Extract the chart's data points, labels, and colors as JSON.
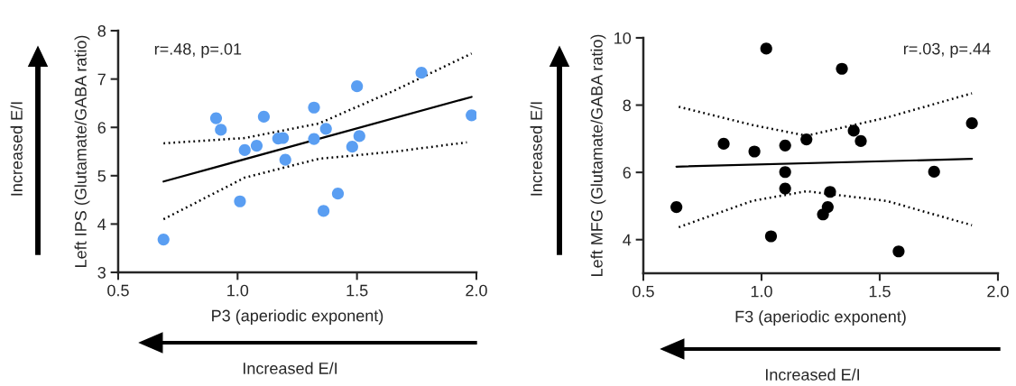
{
  "chart_data": [
    {
      "type": "scatter",
      "xlabel": "P3 (aperiodic exponent)",
      "ylabel": "Left IPS (Glutamate/GABA ratio)",
      "annotations": [
        "r=.48, p=.01",
        "Increased E/I",
        "Increased E/I"
      ],
      "xlim": [
        0.5,
        2.0
      ],
      "xticks": [
        {
          "value": 0.5,
          "label": "0.5"
        },
        {
          "value": 1.0,
          "label": "1.0"
        },
        {
          "value": 1.5,
          "label": "1.5"
        },
        {
          "value": 2.0,
          "label": "2.0"
        }
      ],
      "ylim": [
        3,
        8
      ],
      "yticks": [
        3,
        4,
        5,
        6,
        7,
        8
      ],
      "grid": false,
      "legend": false,
      "series": [
        {
          "marker": "circle",
          "color": "#5a9ef2",
          "x": [
            0.69,
            0.91,
            0.93,
            1.01,
            1.03,
            1.08,
            1.11,
            1.17,
            1.19,
            1.2,
            1.32,
            1.32,
            1.36,
            1.37,
            1.42,
            1.48,
            1.5,
            1.51,
            1.77,
            1.98
          ],
          "values": [
            3.68,
            6.19,
            5.95,
            4.47,
            5.53,
            5.62,
            6.22,
            5.77,
            5.78,
            5.33,
            6.41,
            5.76,
            4.27,
            5.97,
            4.63,
            5.6,
            6.85,
            5.82,
            7.13,
            6.25
          ]
        },
        {
          "type": "line",
          "line_style": "solid",
          "color": "#000000",
          "x": [
            0.69,
            1.98
          ],
          "values": [
            4.88,
            6.63
          ]
        },
        {
          "type": "line",
          "line_style": "dotted",
          "color": "#000000",
          "x": [
            0.69,
            1.03,
            1.34,
            1.66,
            1.98
          ],
          "values": [
            5.67,
            5.78,
            6.08,
            6.77,
            7.53
          ]
        },
        {
          "type": "line",
          "line_style": "dotted",
          "color": "#000000",
          "x": [
            0.69,
            1.03,
            1.34,
            1.66,
            1.96
          ],
          "values": [
            4.1,
            4.96,
            5.35,
            5.5,
            5.69
          ]
        }
      ]
    },
    {
      "type": "scatter",
      "xlabel": "F3 (aperiodic exponent)",
      "ylabel": "Left MFG (Glutamate/GABA ratio)",
      "annotations": [
        "r=.03, p=.44",
        "Increased E/I",
        "Increased E/I"
      ],
      "xlim": [
        0.5,
        2.0
      ],
      "xticks": [
        {
          "value": 0.5,
          "label": "0.5"
        },
        {
          "value": 1.0,
          "label": "1.0"
        },
        {
          "value": 1.5,
          "label": "1.5"
        },
        {
          "value": 2.0,
          "label": "2.0"
        }
      ],
      "ylim": [
        3,
        10
      ],
      "yticks": [
        4,
        6,
        8,
        10
      ],
      "grid": false,
      "legend": false,
      "series": [
        {
          "marker": "circle",
          "color": "#000000",
          "x": [
            0.64,
            0.84,
            0.97,
            1.02,
            1.04,
            1.1,
            1.1,
            1.1,
            1.19,
            1.26,
            1.28,
            1.29,
            1.34,
            1.39,
            1.42,
            1.58,
            1.73,
            1.89
          ],
          "values": [
            4.97,
            6.85,
            6.62,
            9.68,
            4.1,
            6.01,
            5.52,
            6.8,
            6.98,
            4.75,
            4.97,
            5.42,
            9.08,
            7.24,
            6.93,
            3.65,
            6.02,
            7.46
          ]
        },
        {
          "type": "line",
          "line_style": "solid",
          "color": "#000000",
          "x": [
            0.64,
            1.89
          ],
          "values": [
            6.17,
            6.4
          ]
        },
        {
          "type": "line",
          "line_style": "dotted",
          "color": "#000000",
          "x": [
            0.65,
            0.96,
            1.19,
            1.53,
            1.89
          ],
          "values": [
            7.95,
            7.41,
            7.09,
            7.63,
            8.35
          ]
        },
        {
          "type": "line",
          "line_style": "dotted",
          "color": "#000000",
          "x": [
            0.65,
            0.96,
            1.19,
            1.53,
            1.89
          ],
          "values": [
            4.37,
            5.15,
            5.44,
            5.15,
            4.43
          ]
        }
      ]
    }
  ]
}
